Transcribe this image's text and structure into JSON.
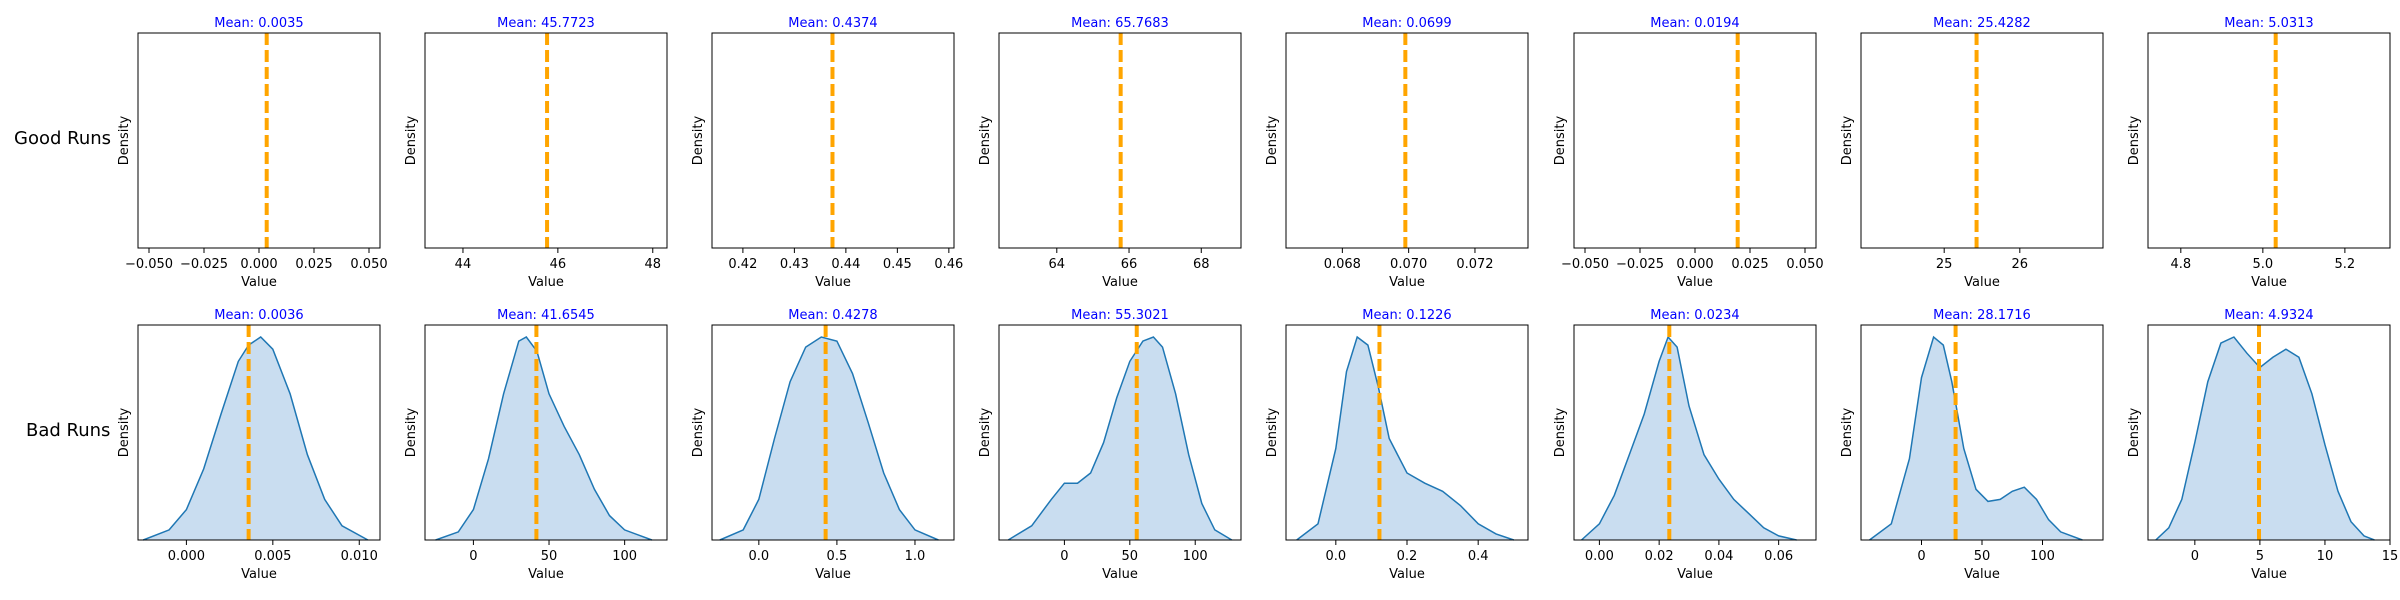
{
  "rows": [
    {
      "label": "Good Runs"
    },
    {
      "label": "Bad Runs"
    }
  ],
  "colors": {
    "mean_line": "#ffa500",
    "kde_line": "#1f77b4",
    "kde_fill": "#c6dbef",
    "title": "#0000ff",
    "axis": "#000000"
  },
  "chart_data": [
    {
      "type": "area",
      "row": "Good Runs",
      "title": "Mean: 0.0035",
      "xlabel": "Value",
      "ylabel": "Density",
      "mean": 0.0035,
      "xlim": [
        -0.055,
        0.055
      ],
      "xticks": [
        -0.05,
        -0.025,
        0.0,
        0.025,
        0.05
      ],
      "xtick_labels": [
        "−0.050",
        "−0.025",
        "0.000",
        "0.025",
        "0.050"
      ],
      "curve": []
    },
    {
      "type": "area",
      "row": "Good Runs",
      "title": "Mean: 45.7723",
      "xlabel": "Value",
      "ylabel": "Density",
      "mean": 45.7723,
      "xlim": [
        43.2,
        48.3
      ],
      "xticks": [
        44,
        46,
        48
      ],
      "xtick_labels": [
        "44",
        "46",
        "48"
      ],
      "curve": []
    },
    {
      "type": "area",
      "row": "Good Runs",
      "title": "Mean: 0.4374",
      "xlabel": "Value",
      "ylabel": "Density",
      "mean": 0.4374,
      "xlim": [
        0.414,
        0.461
      ],
      "xticks": [
        0.42,
        0.43,
        0.44,
        0.45,
        0.46
      ],
      "xtick_labels": [
        "0.42",
        "0.43",
        "0.44",
        "0.45",
        "0.46"
      ],
      "curve": []
    },
    {
      "type": "area",
      "row": "Good Runs",
      "title": "Mean: 65.7683",
      "xlabel": "Value",
      "ylabel": "Density",
      "mean": 65.7683,
      "xlim": [
        62.4,
        69.1
      ],
      "xticks": [
        64,
        66,
        68
      ],
      "xtick_labels": [
        "64",
        "66",
        "68"
      ],
      "curve": []
    },
    {
      "type": "area",
      "row": "Good Runs",
      "title": "Mean: 0.0699",
      "xlabel": "Value",
      "ylabel": "Density",
      "mean": 0.0699,
      "xlim": [
        0.0663,
        0.0736
      ],
      "xticks": [
        0.068,
        0.07,
        0.072
      ],
      "xtick_labels": [
        "0.068",
        "0.070",
        "0.072"
      ],
      "curve": []
    },
    {
      "type": "area",
      "row": "Good Runs",
      "title": "Mean: 0.0194",
      "xlabel": "Value",
      "ylabel": "Density",
      "mean": 0.0194,
      "xlim": [
        -0.055,
        0.055
      ],
      "xticks": [
        -0.05,
        -0.025,
        0.0,
        0.025,
        0.05
      ],
      "xtick_labels": [
        "−0.050",
        "−0.025",
        "0.000",
        "0.025",
        "0.050"
      ],
      "curve": []
    },
    {
      "type": "area",
      "row": "Good Runs",
      "title": "Mean: 25.4282",
      "xlabel": "Value",
      "ylabel": "Density",
      "mean": 25.4282,
      "xlim": [
        23.9,
        27.1
      ],
      "xticks": [
        25,
        26
      ],
      "xtick_labels": [
        "25",
        "26"
      ],
      "curve": []
    },
    {
      "type": "area",
      "row": "Good Runs",
      "title": "Mean: 5.0313",
      "xlabel": "Value",
      "ylabel": "Density",
      "mean": 5.0313,
      "xlim": [
        4.72,
        5.31
      ],
      "xticks": [
        4.8,
        5.0,
        5.2
      ],
      "xtick_labels": [
        "4.8",
        "5.0",
        "5.2"
      ],
      "curve": []
    },
    {
      "type": "area",
      "row": "Bad Runs",
      "title": "Mean: 0.0036",
      "xlabel": "Value",
      "ylabel": "Density",
      "mean": 0.0036,
      "xlim": [
        -0.0028,
        0.0112
      ],
      "xticks": [
        0.0,
        0.005,
        0.01
      ],
      "xtick_labels": [
        "0.000",
        "0.005",
        "0.010"
      ],
      "curve": [
        [
          -0.0025,
          0.0
        ],
        [
          -0.001,
          0.05
        ],
        [
          0.0,
          0.15
        ],
        [
          0.001,
          0.35
        ],
        [
          0.002,
          0.62
        ],
        [
          0.003,
          0.88
        ],
        [
          0.0036,
          0.96
        ],
        [
          0.0043,
          1.0
        ],
        [
          0.005,
          0.94
        ],
        [
          0.006,
          0.72
        ],
        [
          0.007,
          0.42
        ],
        [
          0.008,
          0.2
        ],
        [
          0.009,
          0.07
        ],
        [
          0.0105,
          0.0
        ]
      ]
    },
    {
      "type": "area",
      "row": "Bad Runs",
      "title": "Mean: 41.6545",
      "xlabel": "Value",
      "ylabel": "Density",
      "mean": 41.6545,
      "xlim": [
        -32,
        128
      ],
      "xticks": [
        0,
        50,
        100
      ],
      "xtick_labels": [
        "0",
        "50",
        "100"
      ],
      "curve": [
        [
          -25,
          0.0
        ],
        [
          -10,
          0.04
        ],
        [
          0,
          0.15
        ],
        [
          10,
          0.4
        ],
        [
          20,
          0.72
        ],
        [
          30,
          0.98
        ],
        [
          35,
          1.0
        ],
        [
          42,
          0.93
        ],
        [
          50,
          0.72
        ],
        [
          60,
          0.56
        ],
        [
          70,
          0.42
        ],
        [
          80,
          0.25
        ],
        [
          90,
          0.12
        ],
        [
          100,
          0.05
        ],
        [
          118,
          0.0
        ]
      ]
    },
    {
      "type": "area",
      "row": "Bad Runs",
      "title": "Mean: 0.4278",
      "xlabel": "Value",
      "ylabel": "Density",
      "mean": 0.4278,
      "xlim": [
        -0.3,
        1.25
      ],
      "xticks": [
        0.0,
        0.5,
        1.0
      ],
      "xtick_labels": [
        "0.0",
        "0.5",
        "1.0"
      ],
      "curve": [
        [
          -0.25,
          0.0
        ],
        [
          -0.1,
          0.05
        ],
        [
          0.0,
          0.2
        ],
        [
          0.1,
          0.5
        ],
        [
          0.2,
          0.78
        ],
        [
          0.3,
          0.95
        ],
        [
          0.4,
          1.0
        ],
        [
          0.5,
          0.98
        ],
        [
          0.6,
          0.82
        ],
        [
          0.7,
          0.58
        ],
        [
          0.8,
          0.33
        ],
        [
          0.9,
          0.15
        ],
        [
          1.0,
          0.05
        ],
        [
          1.15,
          0.0
        ]
      ]
    },
    {
      "type": "area",
      "row": "Bad Runs",
      "title": "Mean: 55.3021",
      "xlabel": "Value",
      "ylabel": "Density",
      "mean": 55.3021,
      "xlim": [
        -50,
        135
      ],
      "xticks": [
        0,
        50,
        100
      ],
      "xtick_labels": [
        "0",
        "50",
        "100"
      ],
      "curve": [
        [
          -43,
          0.0
        ],
        [
          -25,
          0.07
        ],
        [
          -10,
          0.2
        ],
        [
          0,
          0.28
        ],
        [
          10,
          0.28
        ],
        [
          20,
          0.33
        ],
        [
          30,
          0.48
        ],
        [
          40,
          0.7
        ],
        [
          50,
          0.88
        ],
        [
          60,
          0.98
        ],
        [
          68,
          1.0
        ],
        [
          75,
          0.95
        ],
        [
          85,
          0.72
        ],
        [
          95,
          0.42
        ],
        [
          105,
          0.18
        ],
        [
          115,
          0.05
        ],
        [
          128,
          0.0
        ]
      ]
    },
    {
      "type": "area",
      "row": "Bad Runs",
      "title": "Mean: 0.1226",
      "xlabel": "Value",
      "ylabel": "Density",
      "mean": 0.1226,
      "xlim": [
        -0.14,
        0.54
      ],
      "xticks": [
        0.0,
        0.2,
        0.4
      ],
      "xtick_labels": [
        "0.0",
        "0.2",
        "0.4"
      ],
      "curve": [
        [
          -0.11,
          0.0
        ],
        [
          -0.05,
          0.08
        ],
        [
          0.0,
          0.45
        ],
        [
          0.03,
          0.83
        ],
        [
          0.06,
          1.0
        ],
        [
          0.09,
          0.96
        ],
        [
          0.12,
          0.75
        ],
        [
          0.15,
          0.5
        ],
        [
          0.2,
          0.33
        ],
        [
          0.25,
          0.28
        ],
        [
          0.3,
          0.24
        ],
        [
          0.35,
          0.17
        ],
        [
          0.4,
          0.08
        ],
        [
          0.45,
          0.03
        ],
        [
          0.5,
          0.0
        ]
      ]
    },
    {
      "type": "area",
      "row": "Bad Runs",
      "title": "Mean: 0.0234",
      "xlabel": "Value",
      "ylabel": "Density",
      "mean": 0.0234,
      "xlim": [
        -0.0085,
        0.0725
      ],
      "xticks": [
        0.0,
        0.02,
        0.04,
        0.06
      ],
      "xtick_labels": [
        "0.00",
        "0.02",
        "0.04",
        "0.06"
      ],
      "curve": [
        [
          -0.006,
          0.0
        ],
        [
          0.0,
          0.08
        ],
        [
          0.005,
          0.22
        ],
        [
          0.01,
          0.42
        ],
        [
          0.015,
          0.62
        ],
        [
          0.02,
          0.88
        ],
        [
          0.023,
          1.0
        ],
        [
          0.026,
          0.95
        ],
        [
          0.03,
          0.66
        ],
        [
          0.035,
          0.42
        ],
        [
          0.04,
          0.3
        ],
        [
          0.045,
          0.2
        ],
        [
          0.05,
          0.13
        ],
        [
          0.055,
          0.06
        ],
        [
          0.06,
          0.02
        ],
        [
          0.066,
          0.0
        ]
      ]
    },
    {
      "type": "area",
      "row": "Bad Runs",
      "title": "Mean: 28.1716",
      "xlabel": "Value",
      "ylabel": "Density",
      "mean": 28.1716,
      "xlim": [
        -50,
        150
      ],
      "xticks": [
        0,
        50,
        100
      ],
      "xtick_labels": [
        "0",
        "50",
        "100"
      ],
      "curve": [
        [
          -43,
          0.0
        ],
        [
          -25,
          0.08
        ],
        [
          -10,
          0.4
        ],
        [
          0,
          0.8
        ],
        [
          10,
          1.0
        ],
        [
          18,
          0.96
        ],
        [
          25,
          0.78
        ],
        [
          35,
          0.45
        ],
        [
          45,
          0.25
        ],
        [
          55,
          0.19
        ],
        [
          65,
          0.2
        ],
        [
          75,
          0.24
        ],
        [
          85,
          0.26
        ],
        [
          95,
          0.2
        ],
        [
          105,
          0.1
        ],
        [
          115,
          0.04
        ],
        [
          133,
          0.0
        ]
      ]
    },
    {
      "type": "area",
      "row": "Bad Runs",
      "title": "Mean: 4.9324",
      "xlabel": "Value",
      "ylabel": "Density",
      "mean": 4.9324,
      "xlim": [
        -3.6,
        15.0
      ],
      "xticks": [
        0,
        5,
        10,
        15
      ],
      "xtick_labels": [
        "0",
        "5",
        "10",
        "15"
      ],
      "curve": [
        [
          -3.0,
          0.0
        ],
        [
          -2.0,
          0.06
        ],
        [
          -1.0,
          0.2
        ],
        [
          0.0,
          0.48
        ],
        [
          1.0,
          0.78
        ],
        [
          2.0,
          0.97
        ],
        [
          3.0,
          1.0
        ],
        [
          4.0,
          0.92
        ],
        [
          5.0,
          0.85
        ],
        [
          6.0,
          0.9
        ],
        [
          7.0,
          0.94
        ],
        [
          8.0,
          0.9
        ],
        [
          9.0,
          0.72
        ],
        [
          10.0,
          0.47
        ],
        [
          11.0,
          0.24
        ],
        [
          12.0,
          0.09
        ],
        [
          13.0,
          0.02
        ],
        [
          13.8,
          0.0
        ]
      ]
    }
  ]
}
